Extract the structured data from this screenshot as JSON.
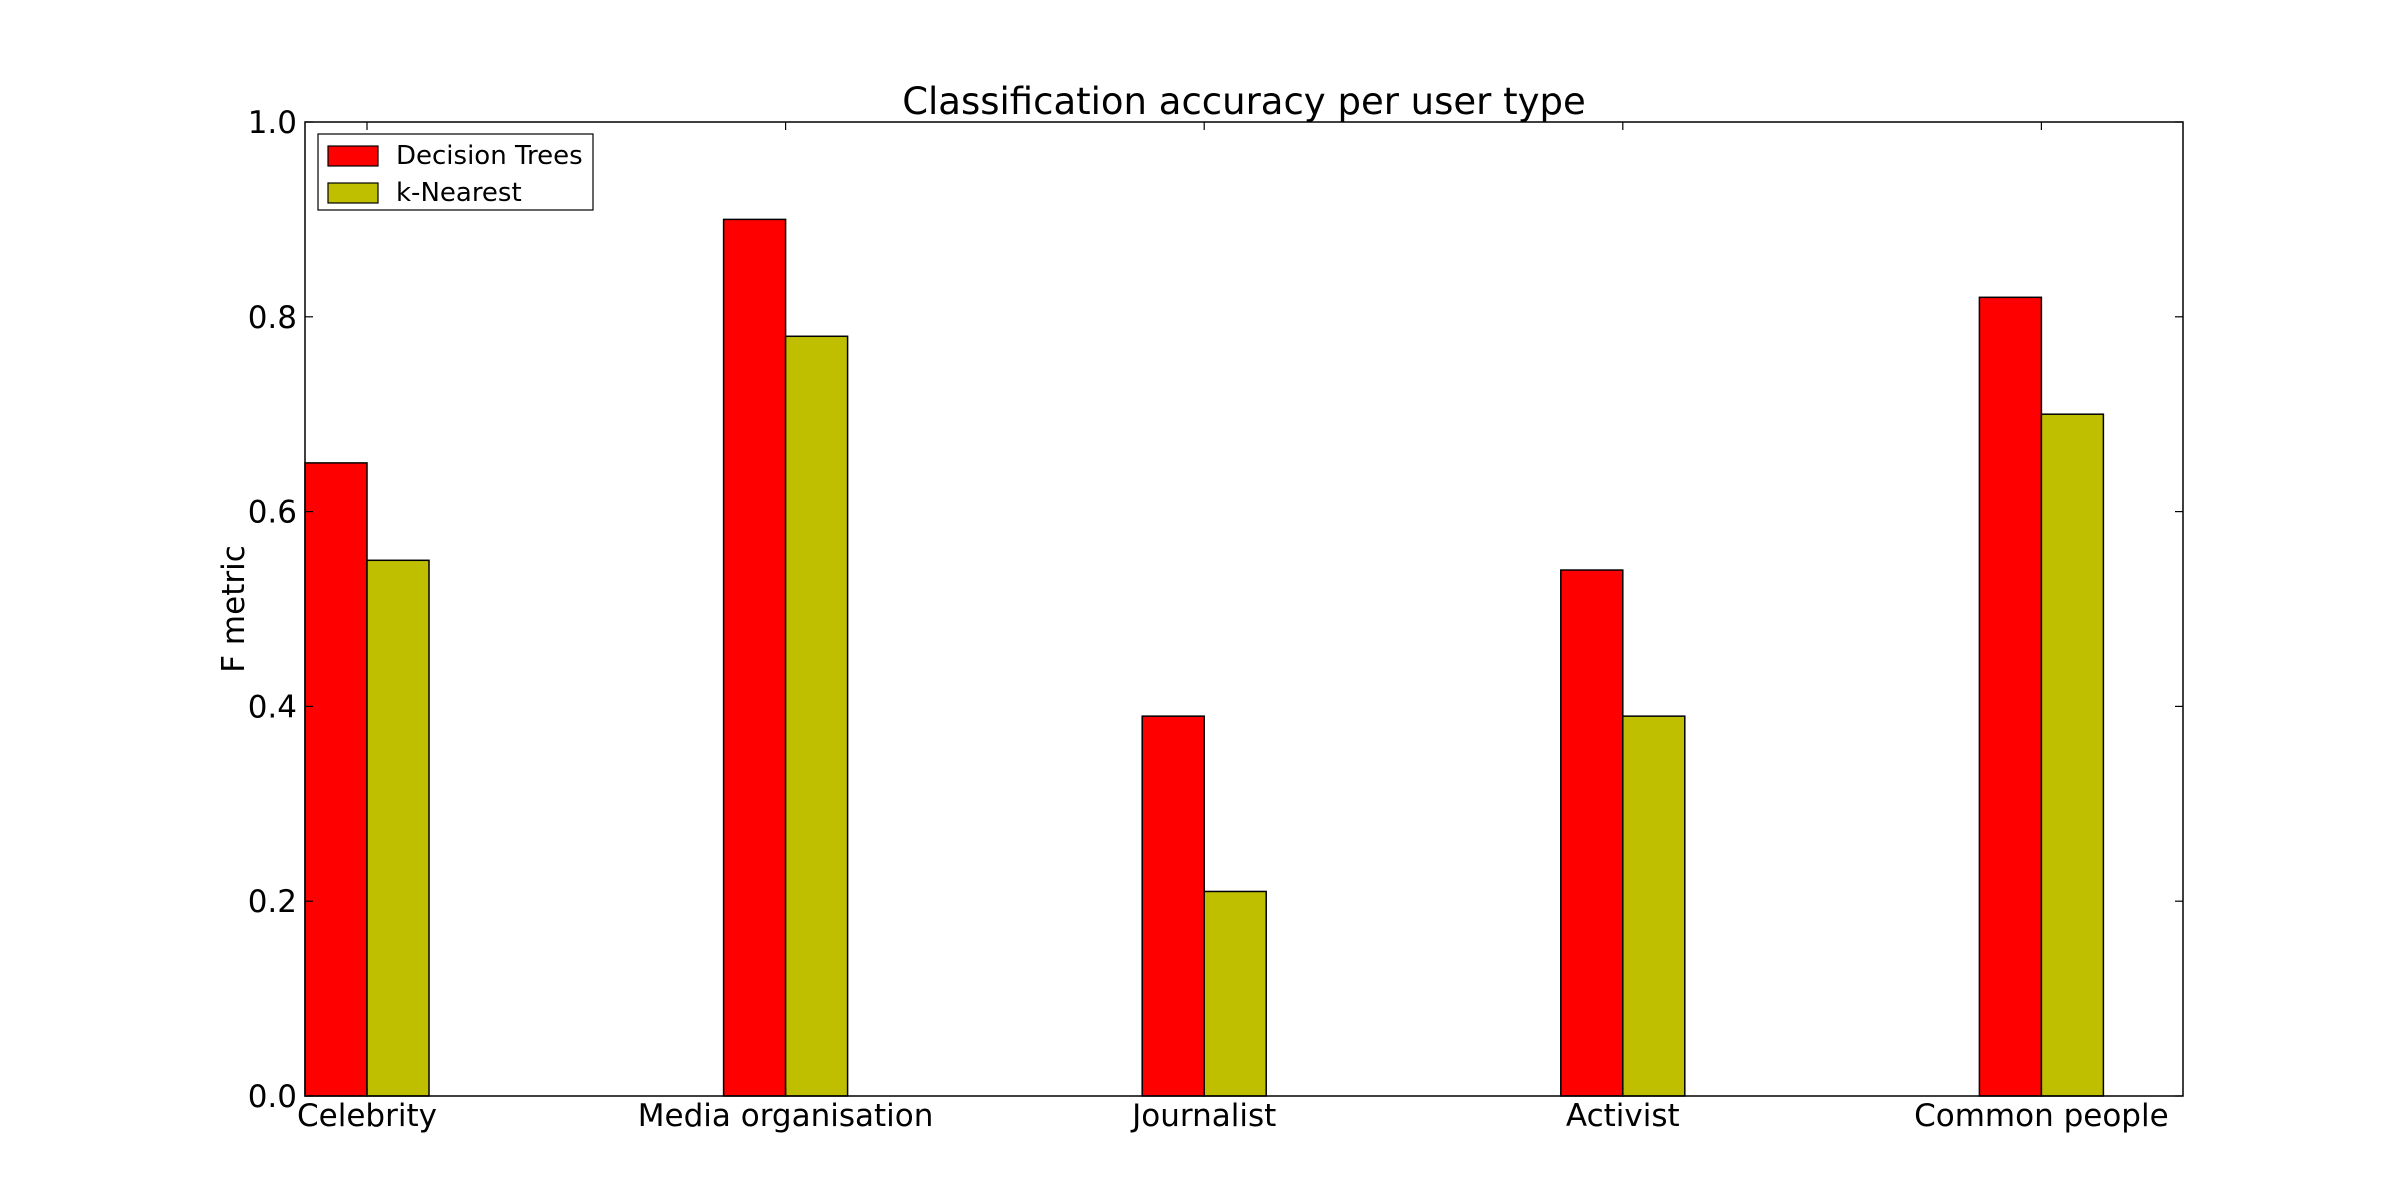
{
  "chart_data": {
    "type": "bar",
    "title": "Classification accuracy per user type",
    "xlabel": "",
    "ylabel": "F metric",
    "ylim": [
      0,
      1.0
    ],
    "yticks": [
      "0.0",
      "0.2",
      "0.4",
      "0.6",
      "0.8",
      "1.0"
    ],
    "categories": [
      "Celebrity",
      "Media organisation",
      "Journalist",
      "Activist",
      "Common people"
    ],
    "series": [
      {
        "name": "Decision Trees",
        "color": "#ff0000",
        "values": [
          0.65,
          0.9,
          0.39,
          0.54,
          0.82
        ]
      },
      {
        "name": "k-Nearest",
        "color": "#bfbf00",
        "values": [
          0.55,
          0.78,
          0.21,
          0.39,
          0.7
        ]
      }
    ],
    "legend": "upper-left",
    "grid": false
  }
}
